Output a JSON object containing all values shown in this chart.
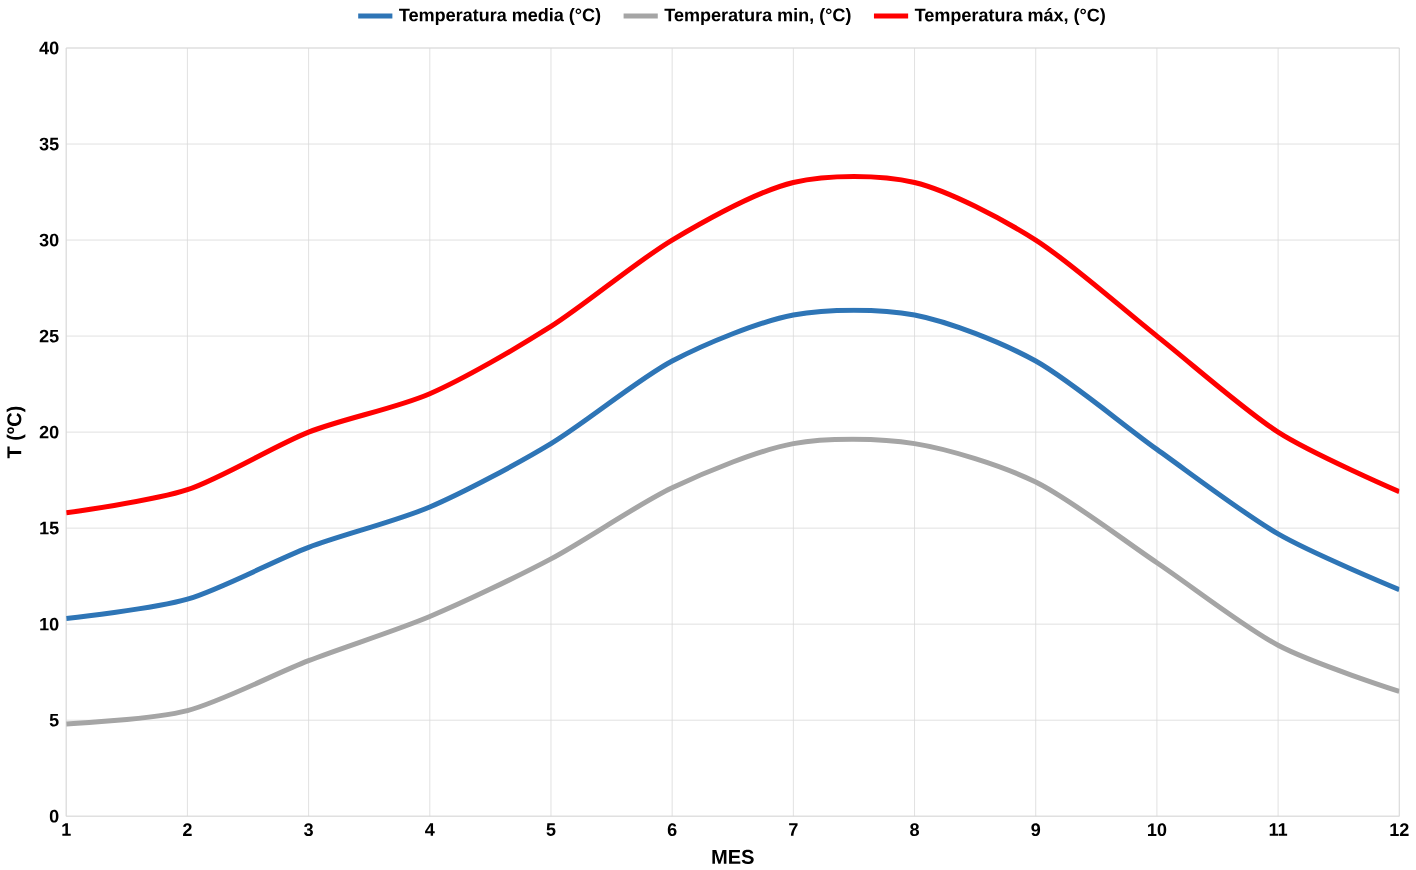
{
  "chart_data": {
    "type": "line",
    "xlabel": "MES",
    "ylabel": "T (ºC)",
    "x": [
      1,
      2,
      3,
      4,
      5,
      6,
      7,
      8,
      9,
      10,
      11,
      12
    ],
    "series": [
      {
        "name": "Temperatura media (°C)",
        "color": "#2e75b6",
        "values": [
          10.3,
          11.3,
          14.0,
          16.1,
          19.4,
          23.7,
          26.1,
          26.1,
          23.7,
          19.1,
          14.7,
          11.8
        ]
      },
      {
        "name": "Temperatura min, (°C)",
        "color": "#a5a5a5",
        "values": [
          4.8,
          5.5,
          8.1,
          10.4,
          13.4,
          17.1,
          19.4,
          19.4,
          17.4,
          13.2,
          8.9,
          6.5
        ]
      },
      {
        "name": "Temperatura máx, (°C)",
        "color": "#ff0000",
        "values": [
          15.8,
          17.0,
          20.0,
          22.0,
          25.5,
          30.0,
          33.0,
          33.0,
          30.0,
          25.0,
          20.0,
          16.9
        ]
      }
    ],
    "xlim": [
      1,
      12
    ],
    "xticks": [
      1,
      2,
      3,
      4,
      5,
      6,
      7,
      8,
      9,
      10,
      11,
      12
    ],
    "ylim": [
      0,
      40
    ],
    "yticks": [
      0,
      5,
      10,
      15,
      20,
      25,
      30,
      35,
      40
    ],
    "grid": true,
    "legend": "top",
    "marker": "none",
    "line_style": "solid"
  }
}
